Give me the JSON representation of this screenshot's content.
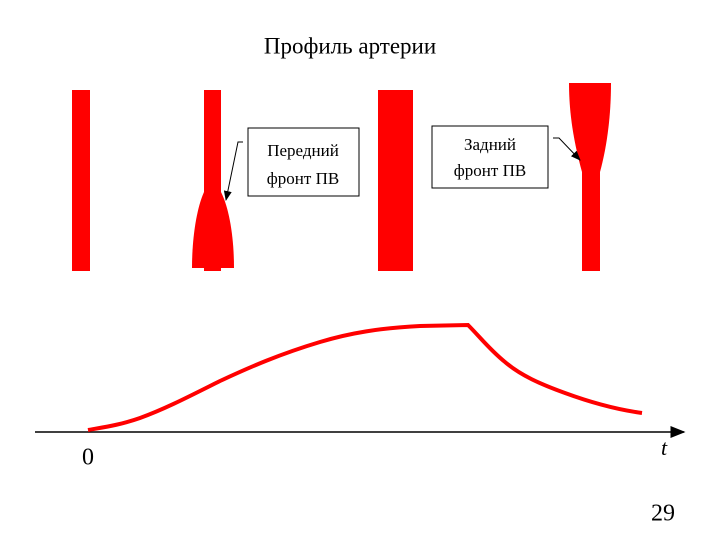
{
  "title": "Профиль артерии",
  "callouts": [
    {
      "lines": [
        "Передний",
        "фронт ПВ"
      ]
    },
    {
      "lines": [
        "Задний",
        "фронт ПВ"
      ]
    }
  ],
  "axis": {
    "origin_label": "0",
    "label": "t"
  },
  "page_number": "29"
}
